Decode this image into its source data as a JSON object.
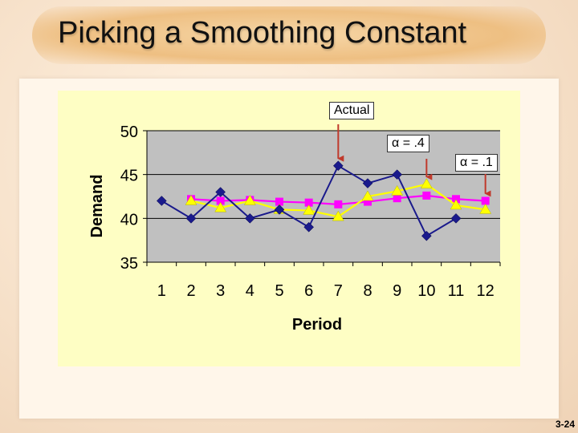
{
  "slide": {
    "title": "Picking a Smoothing Constant",
    "number": "3-24"
  },
  "callouts": {
    "actual": "Actual",
    "alpha_04": "α = .4",
    "alpha_01": "α = .1"
  },
  "colors": {
    "plot_bg": "#c0c0c0",
    "chart_bg": "#fefec4",
    "actual": "#1a1a8c",
    "alpha_01": "#ff00ff",
    "alpha_04": "#ffff00",
    "callout_arrow": "#c0392b"
  },
  "chart_data": {
    "type": "line",
    "xlabel": "Period",
    "ylabel": "Demand",
    "x": [
      1,
      2,
      3,
      4,
      5,
      6,
      7,
      8,
      9,
      10,
      11,
      12
    ],
    "ylim": [
      35,
      50
    ],
    "yticks": [
      35,
      40,
      45,
      50
    ],
    "grid": true,
    "series": [
      {
        "key": "actual",
        "marker": "diamond",
        "values": [
          42,
          40,
          43,
          40,
          41,
          39,
          46,
          44,
          45,
          38,
          40,
          null
        ]
      },
      {
        "key": "alpha_01",
        "marker": "square",
        "values": [
          null,
          42.2,
          42.0,
          42.1,
          41.9,
          41.8,
          41.6,
          41.9,
          42.3,
          42.6,
          42.2,
          42.0
        ]
      },
      {
        "key": "alpha_04",
        "marker": "triangle",
        "values": [
          null,
          42.0,
          41.2,
          42.0,
          41.0,
          40.9,
          40.2,
          42.5,
          43.1,
          43.9,
          41.5,
          41.0
        ]
      }
    ]
  }
}
